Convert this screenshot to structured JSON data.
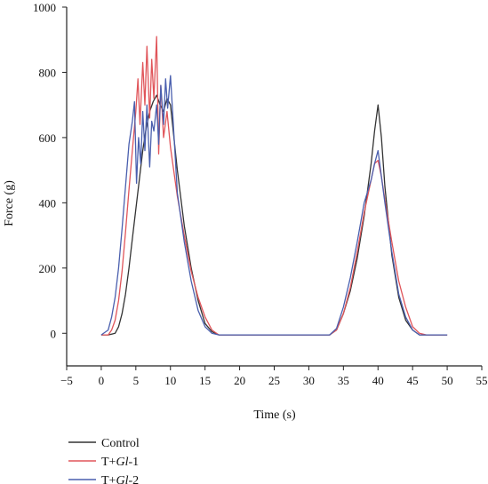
{
  "chart_data": {
    "type": "line",
    "title": "",
    "xlabel": "Time (s)",
    "ylabel": "Force (g)",
    "xlim": [
      -5,
      55
    ],
    "ylim": [
      -100,
      1000
    ],
    "x_ticks": [
      -5,
      0,
      5,
      10,
      15,
      20,
      25,
      30,
      35,
      40,
      45,
      50,
      55
    ],
    "y_ticks": [
      0,
      200,
      400,
      600,
      800,
      1000
    ],
    "legend_position": "bottom-left",
    "grid": false,
    "series": [
      {
        "name": "Control",
        "color": "#333333",
        "x": [
          0,
          1,
          2,
          2.5,
          3,
          3.5,
          4,
          4.5,
          5,
          5.5,
          6,
          6.5,
          7,
          7.5,
          8,
          8.5,
          9,
          9.5,
          10,
          11,
          12,
          13,
          14,
          15,
          16,
          17,
          20,
          25,
          30,
          33,
          34,
          35,
          36,
          37,
          38,
          39,
          39.5,
          40,
          40.5,
          41,
          42,
          43,
          44,
          45,
          46,
          47,
          50
        ],
        "y": [
          -5,
          -5,
          0,
          20,
          60,
          120,
          200,
          290,
          380,
          470,
          560,
          630,
          680,
          710,
          730,
          700,
          680,
          720,
          700,
          500,
          330,
          200,
          100,
          30,
          5,
          -5,
          -5,
          -5,
          -5,
          -5,
          10,
          60,
          130,
          230,
          360,
          520,
          620,
          700,
          600,
          450,
          240,
          110,
          40,
          10,
          -5,
          -5,
          -5
        ]
      },
      {
        "name": "T+Gl-1",
        "color": "#e0555a",
        "x": [
          0,
          1,
          1.5,
          2,
          2.5,
          3,
          3.5,
          4,
          4.5,
          5,
          5.3,
          5.6,
          6,
          6.3,
          6.6,
          7,
          7.3,
          7.6,
          8,
          8.3,
          8.6,
          9,
          9.5,
          10,
          11,
          12,
          13,
          14,
          15,
          16,
          17,
          20,
          25,
          30,
          33,
          34,
          35,
          36,
          37,
          38,
          39,
          39.5,
          40,
          40.5,
          41,
          42,
          43,
          44,
          45,
          46,
          47,
          50
        ],
        "y": [
          -5,
          -5,
          10,
          40,
          100,
          190,
          310,
          440,
          560,
          680,
          780,
          640,
          830,
          700,
          880,
          660,
          840,
          720,
          910,
          550,
          760,
          600,
          680,
          570,
          420,
          300,
          190,
          110,
          50,
          10,
          -5,
          -5,
          -5,
          -5,
          -5,
          10,
          60,
          140,
          250,
          370,
          470,
          520,
          530,
          480,
          410,
          280,
          160,
          80,
          20,
          0,
          -5,
          -5
        ]
      },
      {
        "name": "T+Gl-2",
        "color": "#4a5fae",
        "x": [
          0,
          1,
          1.5,
          2,
          2.5,
          3,
          3.5,
          4,
          4.5,
          4.8,
          5.1,
          5.4,
          5.7,
          6,
          6.3,
          6.6,
          7,
          7.3,
          7.6,
          8,
          8.3,
          8.6,
          9,
          9.3,
          9.6,
          10,
          11,
          12,
          13,
          14,
          15,
          16,
          17,
          20,
          25,
          30,
          33,
          34,
          35,
          36,
          37,
          38,
          39,
          39.5,
          40,
          40.5,
          41,
          42,
          43,
          44,
          45,
          46,
          47,
          50
        ],
        "y": [
          -5,
          10,
          50,
          110,
          200,
          320,
          450,
          580,
          650,
          710,
          460,
          600,
          520,
          680,
          560,
          700,
          510,
          650,
          620,
          700,
          580,
          760,
          640,
          780,
          690,
          790,
          430,
          280,
          160,
          70,
          20,
          0,
          -5,
          -5,
          -5,
          -5,
          -5,
          15,
          80,
          170,
          280,
          400,
          470,
          520,
          560,
          480,
          400,
          250,
          120,
          50,
          10,
          -5,
          -5,
          -5
        ]
      }
    ]
  }
}
